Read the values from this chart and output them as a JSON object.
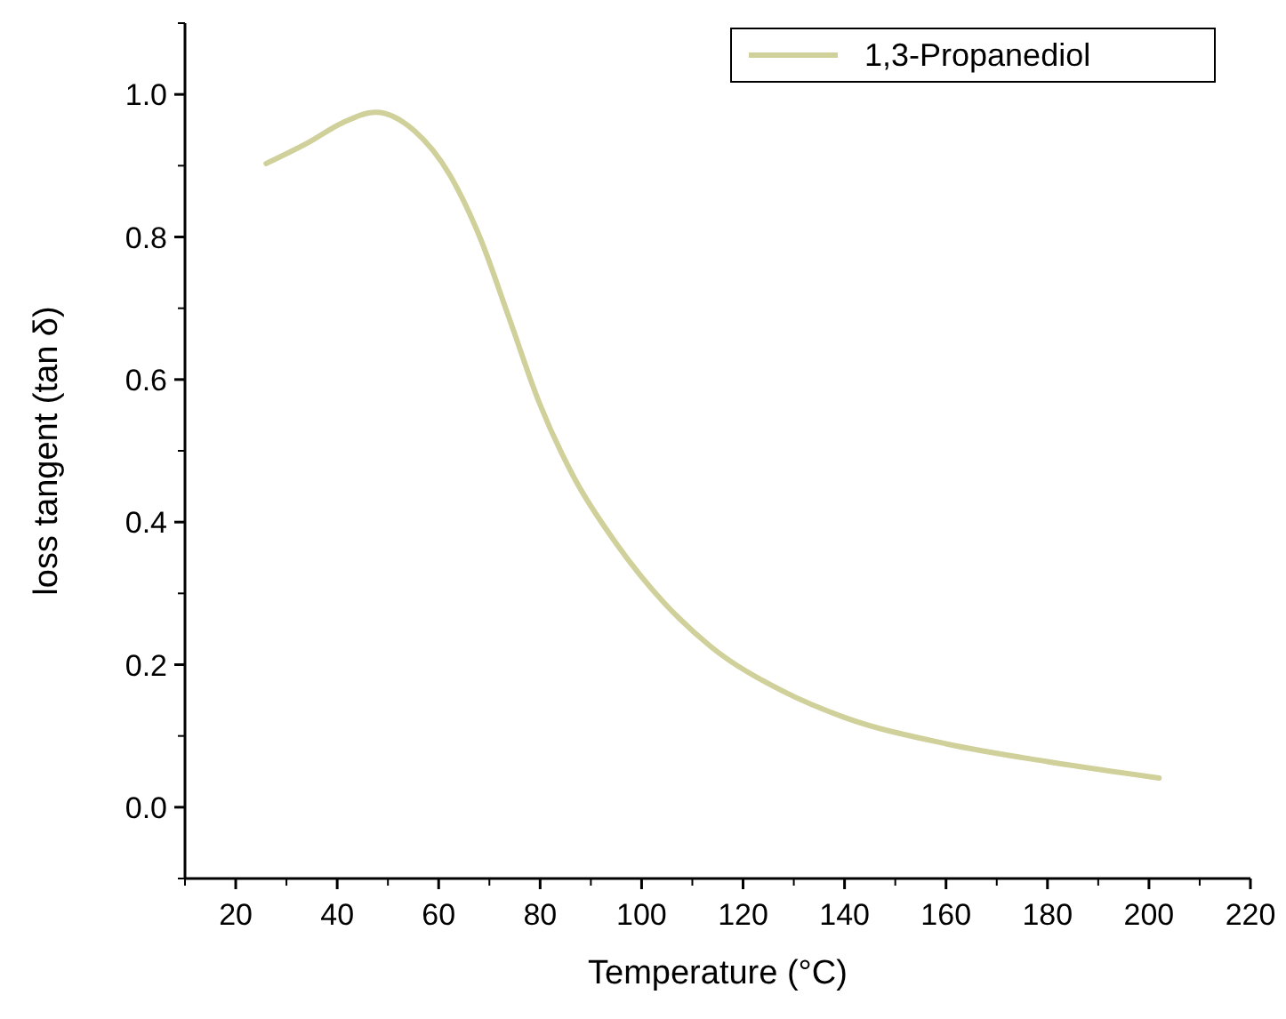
{
  "chart_data": {
    "type": "line",
    "xlabel": "Temperature (°C)",
    "ylabel": "loss tangent (tan δ)",
    "xlim": [
      10,
      220
    ],
    "xticks": [
      20,
      40,
      60,
      80,
      100,
      120,
      140,
      160,
      180,
      200,
      220
    ],
    "ylim": [
      -0.1,
      1.1
    ],
    "yticks": [
      {
        "value": 0,
        "label": "0.0"
      },
      0.2,
      0.4,
      0.6,
      0.8,
      {
        "value": 1,
        "label": "1.0"
      }
    ],
    "legend": "top right",
    "grid": false,
    "series": [
      {
        "name": "1,3-Propanediol",
        "color": "#cfd09a",
        "x": [
          26,
          34.2,
          41,
          47.6,
          55.2,
          62.2,
          68.1,
          74,
          79.8,
          86.8,
          95,
          104.4,
          113.7,
          127.8,
          140,
          160,
          180,
          202
        ],
        "values": [
          0.903,
          0.932,
          0.96,
          0.975,
          0.949,
          0.887,
          0.8,
          0.684,
          0.568,
          0.461,
          0.37,
          0.287,
          0.225,
          0.163,
          0.126,
          0.089,
          0.064,
          0.041
        ]
      }
    ]
  }
}
